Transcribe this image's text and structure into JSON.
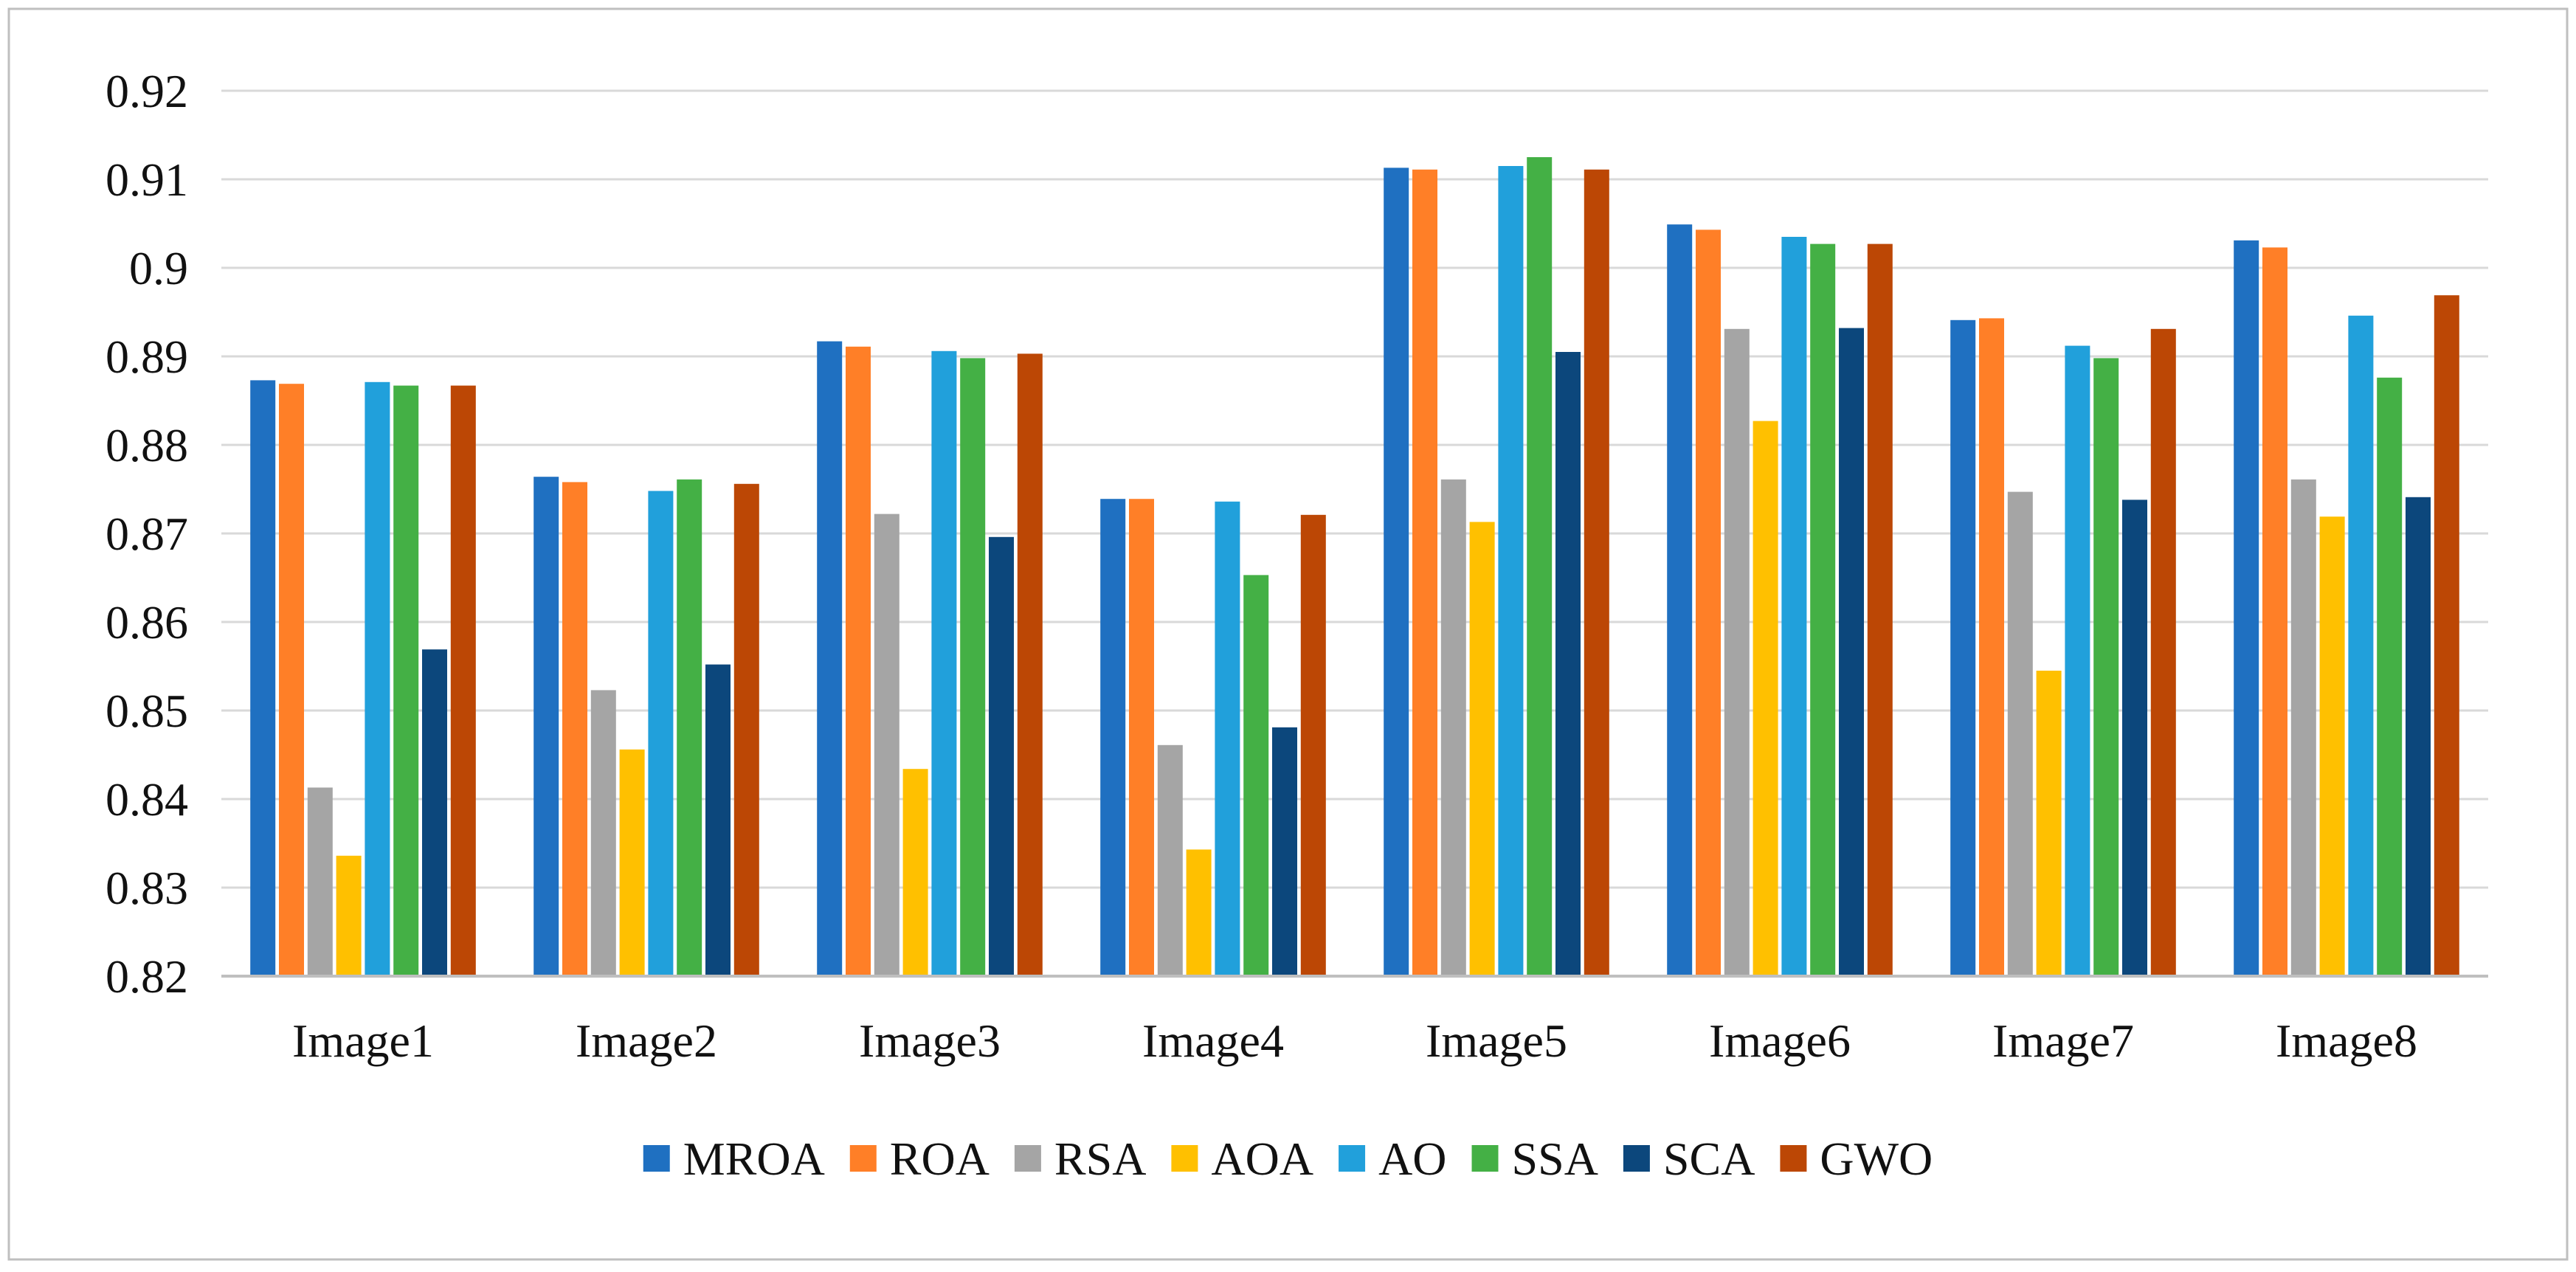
{
  "chart_data": {
    "type": "bar",
    "title": "",
    "xlabel": "",
    "ylabel": "",
    "ylim": [
      0.82,
      0.92
    ],
    "yticks": [
      "0.82",
      "0.83",
      "0.84",
      "0.85",
      "0.86",
      "0.87",
      "0.88",
      "0.89",
      "0.9",
      "0.91",
      "0.92"
    ],
    "grid": true,
    "legend_position": "bottom",
    "categories": [
      "Image1",
      "Image2",
      "Image3",
      "Image4",
      "Image5",
      "Image6",
      "Image7",
      "Image8"
    ],
    "series": [
      {
        "name": "MROA",
        "color": "#1F70C1",
        "values": [
          0.8873,
          0.8764,
          0.8917,
          0.8739,
          0.9113,
          0.9049,
          0.8941,
          0.9031
        ]
      },
      {
        "name": "ROA",
        "color": "#FF7F27",
        "values": [
          0.8869,
          0.8758,
          0.8911,
          0.8739,
          0.9111,
          0.9043,
          0.8943,
          0.9023
        ]
      },
      {
        "name": "RSA",
        "color": "#A5A5A5",
        "values": [
          0.8413,
          0.8523,
          0.8722,
          0.8461,
          0.8761,
          0.8931,
          0.8747,
          0.8761
        ]
      },
      {
        "name": "AOA",
        "color": "#FFC000",
        "values": [
          0.8336,
          0.8456,
          0.8434,
          0.8343,
          0.8713,
          0.8827,
          0.8545,
          0.8719
        ]
      },
      {
        "name": "AO",
        "color": "#21A0DB",
        "values": [
          0.8871,
          0.8748,
          0.8906,
          0.8736,
          0.9115,
          0.9035,
          0.8912,
          0.8946
        ]
      },
      {
        "name": "SSA",
        "color": "#44B045",
        "values": [
          0.8867,
          0.8761,
          0.8898,
          0.8653,
          0.9125,
          0.9027,
          0.8898,
          0.8876
        ]
      },
      {
        "name": "SCA",
        "color": "#0C477C",
        "values": [
          0.8569,
          0.8552,
          0.8696,
          0.8481,
          0.8905,
          0.8932,
          0.8738,
          0.8741
        ]
      },
      {
        "name": "GWO",
        "color": "#BC4705",
        "values": [
          0.8867,
          0.8756,
          0.8903,
          0.8721,
          0.9111,
          0.9027,
          0.8931,
          0.8969
        ]
      }
    ]
  }
}
